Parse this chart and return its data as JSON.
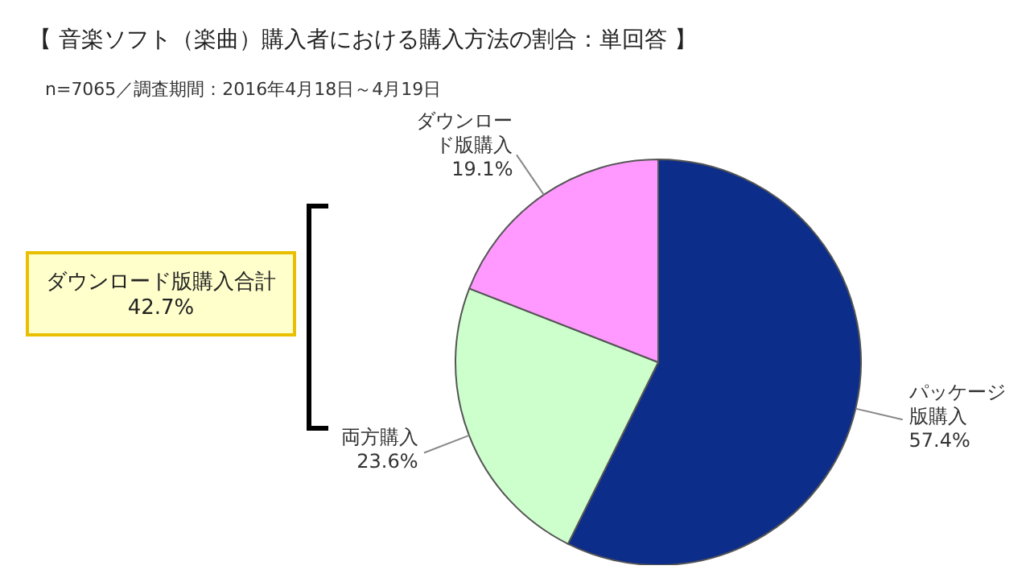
{
  "chart_data": {
    "type": "pie",
    "title": "【 音楽ソフト（楽曲）購入者における購入方法の割合：単回答 】",
    "subtitle": "n=7065／調査期間：2016年4月18日～4月19日",
    "categories": [
      "パッケージ版購入",
      "両方購入",
      "ダウンロード版購入"
    ],
    "values": [
      57.4,
      23.6,
      19.1
    ],
    "value_labels": [
      "57.4%",
      "23.6%",
      "19.1%"
    ],
    "colors": [
      "#0c2d8a",
      "#ccffcc",
      "#ff99ff"
    ],
    "annotations": [
      "ダウンロード版購入合計42.7%"
    ]
  }
}
